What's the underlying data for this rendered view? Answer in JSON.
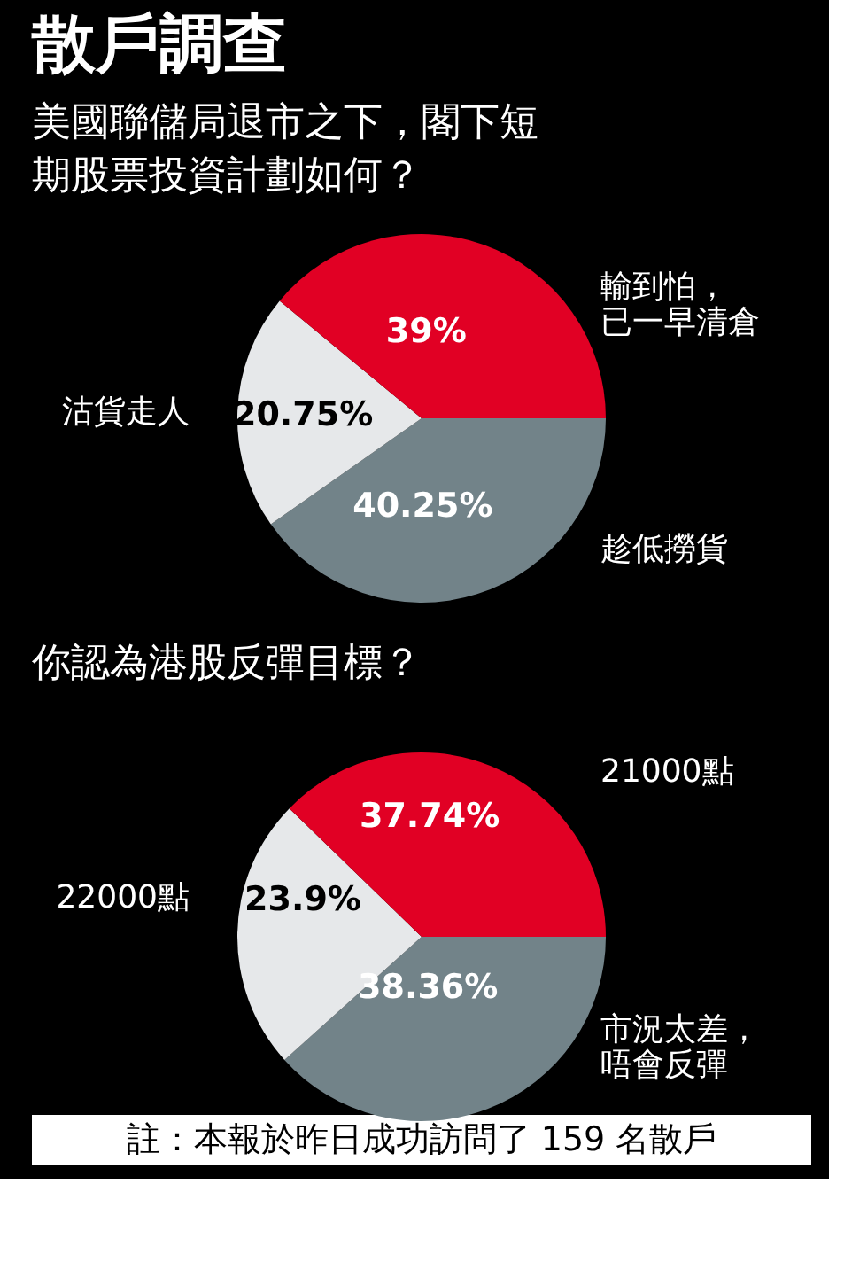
{
  "chart_data": [
    {
      "type": "pie",
      "title": "散戶調查",
      "subtitle": "美國聯儲局退市之下，閣下短期股票投資計劃如何？",
      "categories": [
        "輸到怕，已一早清倉",
        "沽貨走人",
        "趁低撈貨"
      ],
      "values": [
        39,
        20.75,
        40.25
      ],
      "value_labels": [
        "39%",
        "20.75%",
        "40.25%"
      ],
      "colors": [
        "#e10024",
        "#e6e8ea",
        "#728389"
      ]
    },
    {
      "type": "pie",
      "title": "你認為港股反彈目標？",
      "categories": [
        "21000點",
        "22000點",
        "市況太差，唔會反彈"
      ],
      "values": [
        37.74,
        23.9,
        38.36
      ],
      "value_labels": [
        "37.74%",
        "23.9%",
        "38.36%"
      ],
      "colors": [
        "#e10024",
        "#e6e8ea",
        "#728389"
      ],
      "annotations": [
        "註：本報於昨日成功訪問了 159 名散戶"
      ]
    }
  ]
}
